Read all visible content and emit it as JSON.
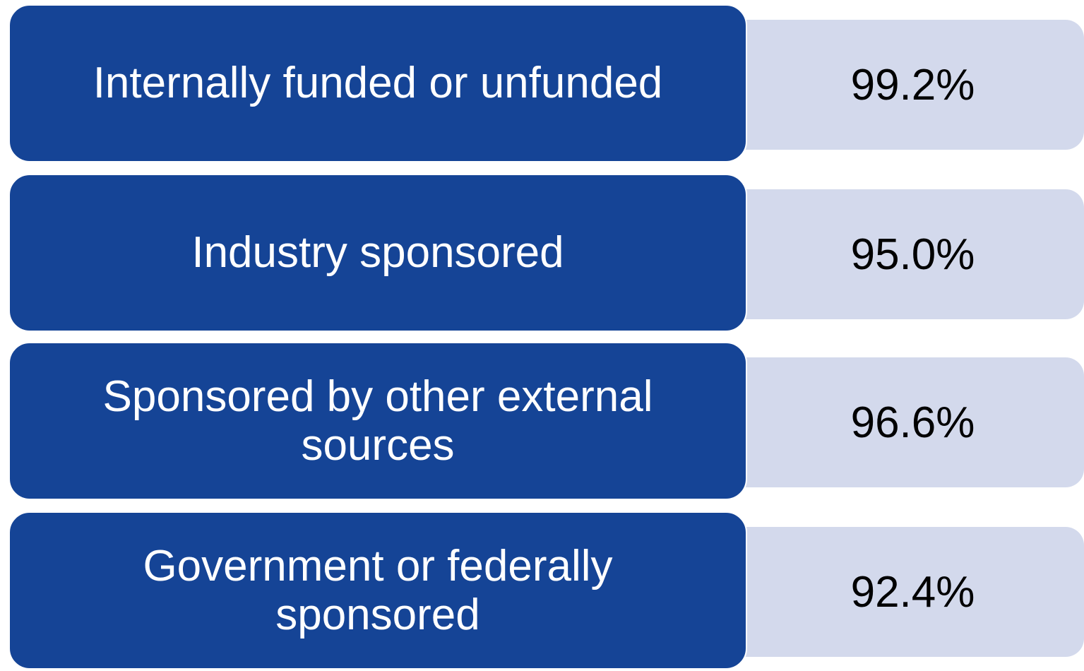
{
  "items": [
    {
      "label": "Internally funded or unfunded",
      "value": "99.2%"
    },
    {
      "label": "Industry sponsored",
      "value": "95.0%"
    },
    {
      "label": "Sponsored by other external sources",
      "value": "96.6%"
    },
    {
      "label": "Government or federally sponsored",
      "value": "92.4%"
    }
  ]
}
